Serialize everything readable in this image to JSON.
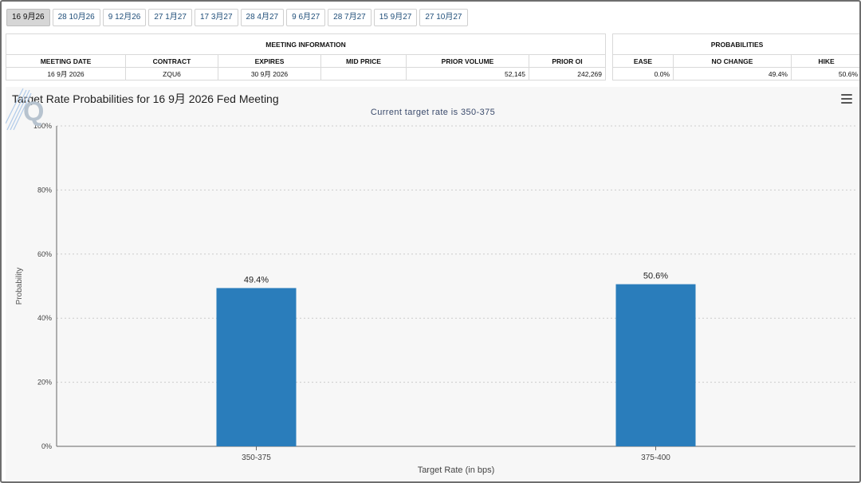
{
  "tabs": [
    {
      "label": "16 9月26",
      "active": true
    },
    {
      "label": "28 10月26",
      "active": false
    },
    {
      "label": "9 12月26",
      "active": false
    },
    {
      "label": "27 1月27",
      "active": false
    },
    {
      "label": "17 3月27",
      "active": false
    },
    {
      "label": "28 4月27",
      "active": false
    },
    {
      "label": "9 6月27",
      "active": false
    },
    {
      "label": "28 7月27",
      "active": false
    },
    {
      "label": "15 9月27",
      "active": false
    },
    {
      "label": "27 10月27",
      "active": false
    }
  ],
  "meeting_info": {
    "group_header": "MEETING INFORMATION",
    "headers": {
      "meeting_date": "MEETING DATE",
      "contract": "CONTRACT",
      "expires": "EXPIRES",
      "mid_price": "MID PRICE",
      "prior_volume": "PRIOR VOLUME",
      "prior_oi": "PRIOR OI"
    },
    "row": {
      "meeting_date": "16 9月 2026",
      "contract": "ZQU6",
      "expires": "30 9月 2026",
      "mid_price": "",
      "prior_volume": "52,145",
      "prior_oi": "242,269"
    }
  },
  "probabilities": {
    "group_header": "PROBABILITIES",
    "headers": {
      "ease": "EASE",
      "no_change": "NO CHANGE",
      "hike": "HIKE"
    },
    "row": {
      "ease": "0.0%",
      "no_change": "49.4%",
      "hike": "50.6%"
    }
  },
  "colors": {
    "bar": "#2a7dbb",
    "grid": "#cccccc",
    "axis": "#666666",
    "logo": "#a9c6e8"
  },
  "chart_data": {
    "type": "bar",
    "title": "Target Rate Probabilities for 16 9月 2026 Fed Meeting",
    "subtitle": "Current target rate is 350-375",
    "xlabel": "Target Rate (in bps)",
    "ylabel": "Probability",
    "categories": [
      "350-375",
      "375-400"
    ],
    "values": [
      49.4,
      50.6
    ],
    "data_labels": [
      "49.4%",
      "50.6%"
    ],
    "ylim": [
      0,
      100
    ],
    "yticks": [
      "0%",
      "20%",
      "40%",
      "60%",
      "80%",
      "100%"
    ],
    "grid": true,
    "legend": "none"
  },
  "icons": {
    "menu": "hamburger-menu-icon",
    "logo": "quikstrike-q-logo"
  }
}
